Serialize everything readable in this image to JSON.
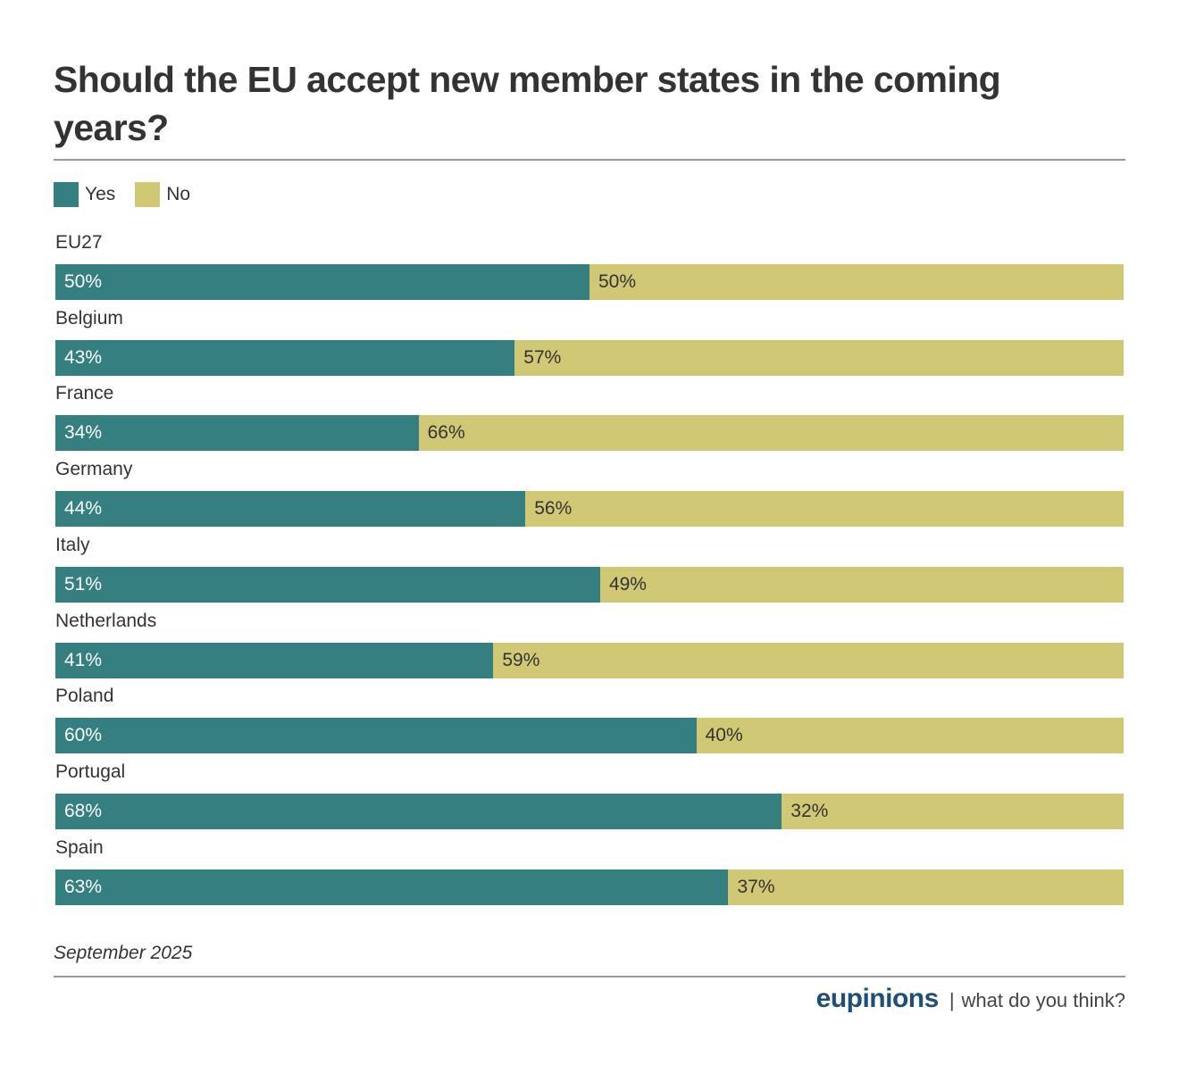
{
  "chart_data": {
    "type": "bar",
    "orientation": "horizontal",
    "stacked": true,
    "title": "Should the EU accept new member states in the coming years?",
    "xlabel": "",
    "ylabel": "",
    "xlim": [
      0,
      100
    ],
    "grid": false,
    "legend_position": "top-left",
    "categories": [
      "EU27",
      "Belgium",
      "France",
      "Germany",
      "Italy",
      "Netherlands",
      "Poland",
      "Portugal",
      "Spain"
    ],
    "series": [
      {
        "name": "Yes",
        "color": "#357f80",
        "label_color": "#ffffff",
        "values": [
          50,
          43,
          34,
          44,
          51,
          41,
          60,
          68,
          63
        ]
      },
      {
        "name": "No",
        "color": "#d1c876",
        "label_color": "#333333",
        "values": [
          50,
          57,
          66,
          56,
          49,
          59,
          40,
          32,
          37
        ]
      }
    ],
    "value_suffix": "%"
  },
  "header": {
    "title": "Should the EU accept new member states in the coming years?"
  },
  "legend": [
    {
      "label": "Yes",
      "color": "#357f80"
    },
    {
      "label": "No",
      "color": "#d1c876"
    }
  ],
  "footer": {
    "date": "September 2025",
    "brand": "eupinions",
    "separator": "|",
    "tagline": "what do you think?"
  }
}
